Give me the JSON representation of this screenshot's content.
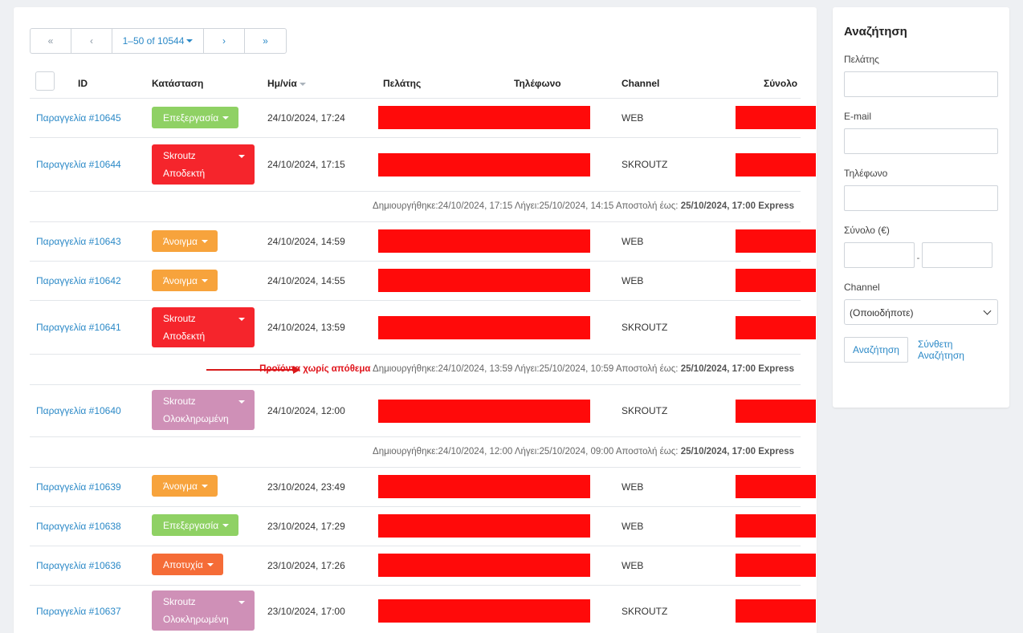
{
  "pager": {
    "first": "«",
    "prev": "‹",
    "range": "1–50 of 10544",
    "next": "›",
    "last": "»"
  },
  "columns": {
    "id": "ID",
    "status": "Κατάσταση",
    "date": "Ημ/νία",
    "customer": "Πελάτης",
    "phone": "Τηλέφωνο",
    "channel": "Channel",
    "total": "Σύνολο"
  },
  "orders": [
    {
      "link": "Παραγγελία #10645",
      "status_line1": "Επεξεργασία",
      "status_line2": "",
      "date": "24/10/2024, 17:24",
      "channel": "WEB"
    },
    {
      "link": "Παραγγελία #10644",
      "status_line1": "Skroutz",
      "status_line2": "Αποδεκτή",
      "date": "24/10/2024, 17:15",
      "channel": "SKROUTZ"
    },
    {
      "link": "Παραγγελία #10643",
      "status_line1": "Άνοιγμα",
      "status_line2": "",
      "date": "24/10/2024, 14:59",
      "channel": "WEB"
    },
    {
      "link": "Παραγγελία #10642",
      "status_line1": "Άνοιγμα",
      "status_line2": "",
      "date": "24/10/2024, 14:55",
      "channel": "WEB"
    },
    {
      "link": "Παραγγελία #10641",
      "status_line1": "Skroutz",
      "status_line2": "Αποδεκτή",
      "date": "24/10/2024, 13:59",
      "channel": "SKROUTZ"
    },
    {
      "link": "Παραγγελία #10640",
      "status_line1": "Skroutz",
      "status_line2": "Ολοκληρωμένη",
      "date": "24/10/2024, 12:00",
      "channel": "SKROUTZ"
    },
    {
      "link": "Παραγγελία #10639",
      "status_line1": "Άνοιγμα",
      "status_line2": "",
      "date": "23/10/2024, 23:49",
      "channel": "WEB"
    },
    {
      "link": "Παραγγελία #10638",
      "status_line1": "Επεξεργασία",
      "status_line2": "",
      "date": "23/10/2024, 17:29",
      "channel": "WEB"
    },
    {
      "link": "Παραγγελία #10636",
      "status_line1": "Αποτυχία",
      "status_line2": "",
      "date": "23/10/2024, 17:26",
      "channel": "WEB"
    },
    {
      "link": "Παραγγελία #10637",
      "status_line1": "Skroutz",
      "status_line2": "Ολοκληρωμένη",
      "date": "23/10/2024, 17:00",
      "channel": "SKROUTZ"
    }
  ],
  "info_rows": [
    {
      "warning": "",
      "details": "Δημιουργήθηκε:24/10/2024, 17:15 Λήγει:25/10/2024, 14:15 Αποστολή έως: ",
      "deadline": "25/10/2024, 17:00 Express"
    },
    {
      "warning": "Προϊόντα χωρίς απόθεμα",
      "details": " Δημιουργήθηκε:24/10/2024, 13:59 Λήγει:25/10/2024, 10:59 Αποστολή έως: ",
      "deadline": "25/10/2024, 17:00 Express"
    },
    {
      "warning": "",
      "details": "Δημιουργήθηκε:24/10/2024, 12:00 Λήγει:25/10/2024, 09:00 Αποστολή έως: ",
      "deadline": "25/10/2024, 17:00 Express"
    }
  ],
  "status_colors": {
    "processing": "#8fd164",
    "open": "#f7a33c",
    "skroutz_accepted": "#f5252c",
    "skroutz_completed": "#cf90b7",
    "failed": "#f56c37"
  },
  "search": {
    "title": "Αναζήτηση",
    "customer_label": "Πελάτης",
    "email_label": "E-mail",
    "phone_label": "Τηλέφωνο",
    "total_label": "Σύνολο (€)",
    "range_sep": "-",
    "channel_label": "Channel",
    "channel_value": "(Οποιοδήποτε)",
    "search_button": "Αναζήτηση",
    "advanced_link": "Σύνθετη Αναζήτηση"
  }
}
